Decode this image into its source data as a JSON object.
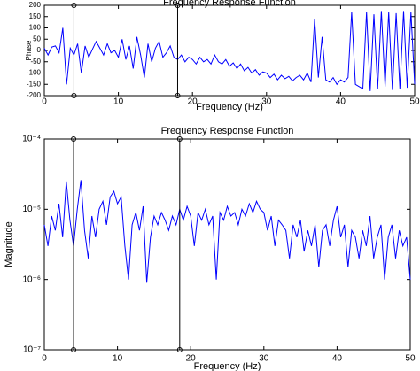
{
  "chart_data": [
    {
      "type": "line",
      "title": "Frequency Response Function",
      "xlabel": "Frequency (Hz)",
      "ylabel": "Phase",
      "xlim": [
        0,
        50
      ],
      "xticks": [
        0,
        10,
        20,
        30,
        40,
        50
      ],
      "ylim": [
        -200,
        200
      ],
      "yticks": [
        -200,
        -150,
        -100,
        -50,
        0,
        50,
        100,
        150,
        200
      ],
      "vlines": [
        4,
        18
      ],
      "series": [
        {
          "color": "#0000ff",
          "x": [
            0,
            0.5,
            1,
            1.5,
            2,
            2.5,
            3,
            3.5,
            4,
            4.5,
            5,
            5.5,
            6,
            6.5,
            7,
            7.5,
            8,
            8.5,
            9,
            9.5,
            10,
            10.5,
            11,
            11.5,
            12,
            12.5,
            13,
            13.5,
            14,
            14.5,
            15,
            15.5,
            16,
            16.5,
            17,
            17.5,
            18,
            18.5,
            19,
            19.5,
            20,
            20.5,
            21,
            21.5,
            22,
            22.5,
            23,
            23.5,
            24,
            24.5,
            25,
            25.5,
            26,
            26.5,
            27,
            27.5,
            28,
            28.5,
            29,
            29.5,
            30,
            30.5,
            31,
            31.5,
            32,
            32.5,
            33,
            33.5,
            34,
            34.5,
            35,
            35.5,
            36,
            36.5,
            37,
            37.5,
            38,
            38.5,
            39,
            39.5,
            40,
            40.5,
            41,
            41.5,
            42,
            42.5,
            43,
            43.5,
            44,
            44.5,
            45,
            45.5,
            46,
            46.5,
            47,
            47.5,
            48,
            48.5,
            49,
            49.5,
            50
          ],
          "values": [
            10,
            -20,
            15,
            20,
            -10,
            100,
            -150,
            10,
            -20,
            30,
            -100,
            20,
            -30,
            5,
            40,
            10,
            -20,
            30,
            -10,
            0,
            -30,
            50,
            -40,
            20,
            -80,
            60,
            -20,
            -120,
            30,
            -50,
            10,
            40,
            -30,
            -10,
            20,
            -30,
            -40,
            -20,
            -50,
            -30,
            -40,
            -60,
            -30,
            -50,
            -40,
            -60,
            -20,
            -50,
            -60,
            -40,
            -70,
            -55,
            -80,
            -60,
            -90,
            -75,
            -100,
            -85,
            -110,
            -95,
            -100,
            -120,
            -105,
            -130,
            -110,
            -125,
            -115,
            -135,
            -120,
            -110,
            -130,
            -100,
            -140,
            140,
            -120,
            60,
            -130,
            -140,
            -120,
            -150,
            -130,
            -140,
            -120,
            170,
            -150,
            -160,
            -170,
            170,
            -180,
            160,
            -170,
            175,
            -160,
            170,
            -175,
            165,
            -170,
            175,
            -165,
            170,
            -150
          ]
        }
      ]
    },
    {
      "type": "line",
      "title": "Frequency Response Function",
      "xlabel": "Frequency (Hz)",
      "ylabel": "Magnitude",
      "log_y": true,
      "xlim": [
        0,
        50
      ],
      "xticks": [
        0,
        10,
        20,
        30,
        40,
        50
      ],
      "ylim": [
        1e-07,
        0.0001
      ],
      "yticks": [
        {
          "value": 1e-07,
          "label": "10⁻⁷"
        },
        {
          "value": 1e-06,
          "label": "10⁻⁶"
        },
        {
          "value": 1e-05,
          "label": "10⁻⁵"
        },
        {
          "value": 0.0001,
          "label": "10⁻⁴"
        }
      ],
      "vlines": [
        4,
        18.5
      ],
      "series": [
        {
          "color": "#0000ff",
          "x": [
            0,
            0.5,
            1,
            1.5,
            2,
            2.5,
            3,
            3.5,
            4,
            4.5,
            5,
            5.5,
            6,
            6.5,
            7,
            7.5,
            8,
            8.5,
            9,
            9.5,
            10,
            10.5,
            11,
            11.5,
            12,
            12.5,
            13,
            13.5,
            14,
            14.5,
            15,
            15.5,
            16,
            16.5,
            17,
            17.5,
            18,
            18.5,
            19,
            19.5,
            20,
            20.5,
            21,
            21.5,
            22,
            22.5,
            23,
            23.5,
            24,
            24.5,
            25,
            25.5,
            26,
            26.5,
            27,
            27.5,
            28,
            28.5,
            29,
            29.5,
            30,
            30.5,
            31,
            31.5,
            32,
            32.5,
            33,
            33.5,
            34,
            34.5,
            35,
            35.5,
            36,
            36.5,
            37,
            37.5,
            38,
            38.5,
            39,
            39.5,
            40,
            40.5,
            41,
            41.5,
            42,
            42.5,
            43,
            43.5,
            44,
            44.5,
            45,
            45.5,
            46,
            46.5,
            47,
            47.5,
            48,
            48.5,
            49,
            49.5,
            50
          ],
          "values": [
            6e-06,
            3e-06,
            8e-06,
            5e-06,
            1.2e-05,
            4e-06,
            2.5e-05,
            7e-06,
            3e-06,
            1e-05,
            2.6e-05,
            5e-06,
            2e-06,
            8e-06,
            4e-06,
            1e-05,
            1.3e-05,
            6e-06,
            1.5e-05,
            1.8e-05,
            1.2e-05,
            1.5e-05,
            3e-06,
            1e-06,
            6e-06,
            9e-06,
            5e-06,
            1.1e-05,
            9e-07,
            4e-06,
            8e-06,
            6e-06,
            9e-06,
            7e-06,
            5e-06,
            8e-06,
            6e-06,
            1e-05,
            7e-06,
            1.1e-05,
            8e-06,
            3e-06,
            9e-06,
            7e-06,
            1e-05,
            6e-06,
            8e-06,
            1e-06,
            9e-06,
            7e-06,
            1.1e-05,
            8e-06,
            9e-06,
            6e-06,
            1e-05,
            8e-06,
            1.2e-05,
            9e-06,
            1.3e-05,
            1e-05,
            9e-06,
            5e-06,
            8e-06,
            3e-06,
            7e-06,
            6e-06,
            5e-06,
            2e-06,
            6e-06,
            4e-06,
            7e-06,
            2.5e-06,
            5e-06,
            3e-06,
            6e-06,
            1.5e-06,
            5e-06,
            6e-06,
            3e-06,
            7e-06,
            1.1e-05,
            4e-06,
            6e-06,
            1.5e-06,
            5e-06,
            4e-06,
            2e-06,
            5e-06,
            3e-06,
            8e-06,
            2e-06,
            4e-06,
            6e-06,
            1e-06,
            4e-06,
            6e-06,
            2e-06,
            5e-06,
            3e-06,
            4e-06,
            1e-06
          ]
        }
      ]
    }
  ]
}
